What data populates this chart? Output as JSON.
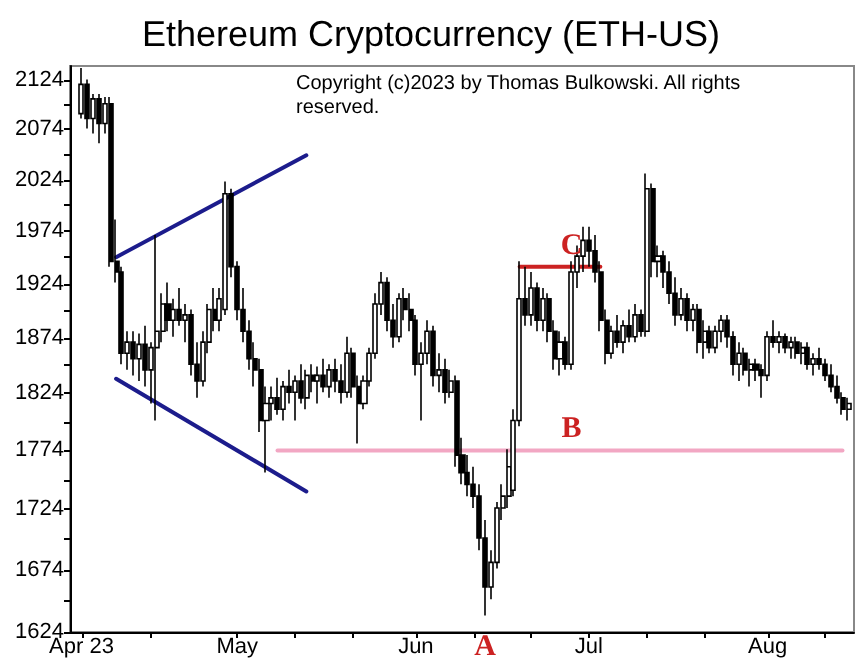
{
  "chart_data": {
    "type": "candlestick",
    "title": "Ethereum Cryptocurrency (ETH-US)",
    "color": "#000000",
    "log": true,
    "marker": "none",
    "annotations": [
      "Copyright (c)2023 by Thomas Bulkowski. All rights reserved.",
      {
        "text": "A",
        "x": "2023-06-13",
        "y": 1637
      },
      {
        "text": "B",
        "x": "2023-06-28",
        "y": 1774
      },
      {
        "text": "C",
        "x": "2023-06-28",
        "y": 1940
      }
    ],
    "x": [
      "2023-04-04",
      "2023-04-05",
      "2023-04-06",
      "2023-04-07",
      "2023-04-08",
      "2023-04-09",
      "2023-04-10",
      "2023-04-11",
      "2023-04-12",
      "2023-04-13",
      "2023-04-14",
      "2023-04-15",
      "2023-04-16",
      "2023-04-17",
      "2023-04-18",
      "2023-04-19",
      "2023-04-20",
      "2023-04-21",
      "2023-04-22",
      "2023-04-23",
      "2023-04-24",
      "2023-04-25",
      "2023-04-26",
      "2023-04-27",
      "2023-04-28",
      "2023-04-29",
      "2023-04-30",
      "2023-05-01",
      "2023-05-02",
      "2023-05-03",
      "2023-05-04",
      "2023-05-05",
      "2023-05-06",
      "2023-05-07",
      "2023-05-08",
      "2023-05-09",
      "2023-05-10",
      "2023-05-11",
      "2023-05-12",
      "2023-05-13",
      "2023-05-14",
      "2023-05-15",
      "2023-05-16",
      "2023-05-17",
      "2023-05-18",
      "2023-05-19",
      "2023-05-20",
      "2023-05-21",
      "2023-05-22",
      "2023-05-23",
      "2023-05-24",
      "2023-05-25",
      "2023-05-26",
      "2023-05-27",
      "2023-05-28",
      "2023-05-29",
      "2023-05-30",
      "2023-05-31",
      "2023-06-01",
      "2023-06-02",
      "2023-06-03",
      "2023-06-04",
      "2023-06-05",
      "2023-06-06",
      "2023-06-07",
      "2023-06-08",
      "2023-06-09",
      "2023-06-10",
      "2023-06-11",
      "2023-06-12",
      "2023-06-13",
      "2023-06-14",
      "2023-06-15",
      "2023-06-16",
      "2023-06-17",
      "2023-06-18",
      "2023-06-19",
      "2023-06-20",
      "2023-06-21",
      "2023-06-22",
      "2023-06-23",
      "2023-06-24",
      "2023-06-25",
      "2023-06-26",
      "2023-06-27",
      "2023-06-28",
      "2023-06-29",
      "2023-06-30",
      "2023-07-01",
      "2023-07-02",
      "2023-07-03",
      "2023-07-04",
      "2023-07-05",
      "2023-07-06",
      "2023-07-07",
      "2023-07-08",
      "2023-07-09",
      "2023-07-10",
      "2023-07-11",
      "2023-07-12",
      "2023-07-13",
      "2023-07-14",
      "2023-07-15",
      "2023-07-16",
      "2023-07-17",
      "2023-07-18",
      "2023-07-19",
      "2023-07-20",
      "2023-07-21",
      "2023-07-22",
      "2023-07-23",
      "2023-07-24",
      "2023-07-25",
      "2023-07-26",
      "2023-07-27",
      "2023-07-28",
      "2023-07-29",
      "2023-07-30",
      "2023-07-31",
      "2023-08-01",
      "2023-08-02",
      "2023-08-03",
      "2023-08-04",
      "2023-08-05",
      "2023-08-06",
      "2023-08-07",
      "2023-08-08",
      "2023-08-09",
      "2023-08-10",
      "2023-08-11",
      "2023-08-12",
      "2023-08-13",
      "2023-08-14",
      "2023-08-15"
    ],
    "ohlc": [
      [
        2090,
        2137,
        2085,
        2120
      ],
      [
        2120,
        2125,
        2075,
        2085
      ],
      [
        2085,
        2110,
        2070,
        2105
      ],
      [
        2105,
        2110,
        2060,
        2080
      ],
      [
        2080,
        2107,
        2070,
        2100
      ],
      [
        2100,
        2107,
        1940,
        1945
      ],
      [
        1945,
        1985,
        1925,
        1935
      ],
      [
        1935,
        1940,
        1850,
        1860
      ],
      [
        1860,
        1880,
        1845,
        1870
      ],
      [
        1870,
        1880,
        1840,
        1855
      ],
      [
        1855,
        1878,
        1835,
        1868
      ],
      [
        1868,
        1885,
        1830,
        1845
      ],
      [
        1845,
        1870,
        1815,
        1865
      ],
      [
        1865,
        1970,
        1800,
        1880
      ],
      [
        1880,
        1915,
        1870,
        1905
      ],
      [
        1905,
        1925,
        1880,
        1890
      ],
      [
        1890,
        1910,
        1875,
        1900
      ],
      [
        1900,
        1920,
        1885,
        1890
      ],
      [
        1890,
        1905,
        1870,
        1895
      ],
      [
        1895,
        1900,
        1840,
        1850
      ],
      [
        1850,
        1870,
        1820,
        1835
      ],
      [
        1835,
        1880,
        1830,
        1870
      ],
      [
        1870,
        1905,
        1860,
        1900
      ],
      [
        1900,
        1920,
        1880,
        1890
      ],
      [
        1890,
        1920,
        1880,
        1910
      ],
      [
        1900,
        2022,
        1895,
        2010
      ],
      [
        2010,
        2015,
        1930,
        1940
      ],
      [
        1940,
        1945,
        1890,
        1900
      ],
      [
        1900,
        1920,
        1870,
        1880
      ],
      [
        1880,
        1890,
        1845,
        1855
      ],
      [
        1855,
        1870,
        1830,
        1845
      ],
      [
        1845,
        1855,
        1790,
        1800
      ],
      [
        1800,
        1830,
        1755,
        1815
      ],
      [
        1815,
        1830,
        1800,
        1820
      ],
      [
        1820,
        1838,
        1805,
        1810
      ],
      [
        1810,
        1835,
        1800,
        1830
      ],
      [
        1830,
        1845,
        1815,
        1825
      ],
      [
        1825,
        1840,
        1800,
        1835
      ],
      [
        1835,
        1850,
        1815,
        1820
      ],
      [
        1820,
        1845,
        1810,
        1840
      ],
      [
        1840,
        1850,
        1825,
        1835
      ],
      [
        1835,
        1848,
        1815,
        1840
      ],
      [
        1840,
        1855,
        1825,
        1830
      ],
      [
        1830,
        1850,
        1820,
        1845
      ],
      [
        1845,
        1855,
        1825,
        1835
      ],
      [
        1835,
        1850,
        1815,
        1825
      ],
      [
        1825,
        1875,
        1820,
        1860
      ],
      [
        1860,
        1865,
        1820,
        1830
      ],
      [
        1830,
        1840,
        1780,
        1815
      ],
      [
        1815,
        1840,
        1810,
        1835
      ],
      [
        1835,
        1865,
        1830,
        1860
      ],
      [
        1860,
        1915,
        1855,
        1905
      ],
      [
        1905,
        1935,
        1895,
        1925
      ],
      [
        1925,
        1930,
        1880,
        1890
      ],
      [
        1890,
        1905,
        1865,
        1875
      ],
      [
        1875,
        1915,
        1870,
        1910
      ],
      [
        1910,
        1920,
        1890,
        1900
      ],
      [
        1900,
        1915,
        1880,
        1890
      ],
      [
        1890,
        1895,
        1840,
        1850
      ],
      [
        1850,
        1870,
        1800,
        1860
      ],
      [
        1860,
        1890,
        1850,
        1880
      ],
      [
        1880,
        1885,
        1830,
        1840
      ],
      [
        1840,
        1860,
        1825,
        1845
      ],
      [
        1845,
        1855,
        1815,
        1825
      ],
      [
        1825,
        1845,
        1820,
        1835
      ],
      [
        1835,
        1840,
        1760,
        1770
      ],
      [
        1770,
        1785,
        1745,
        1755
      ],
      [
        1755,
        1770,
        1735,
        1745
      ],
      [
        1745,
        1760,
        1725,
        1735
      ],
      [
        1735,
        1745,
        1690,
        1700
      ],
      [
        1700,
        1715,
        1637,
        1660
      ],
      [
        1660,
        1690,
        1650,
        1680
      ],
      [
        1680,
        1730,
        1675,
        1725
      ],
      [
        1725,
        1745,
        1715,
        1735
      ],
      [
        1735,
        1775,
        1725,
        1760
      ],
      [
        1740,
        1810,
        1735,
        1800
      ],
      [
        1800,
        1945,
        1795,
        1910
      ],
      [
        1910,
        1940,
        1885,
        1895
      ],
      [
        1895,
        1935,
        1885,
        1920
      ],
      [
        1920,
        1925,
        1880,
        1890
      ],
      [
        1890,
        1920,
        1880,
        1910
      ],
      [
        1910,
        1915,
        1870,
        1880
      ],
      [
        1880,
        1890,
        1845,
        1855
      ],
      [
        1855,
        1880,
        1840,
        1870
      ],
      [
        1870,
        1875,
        1845,
        1850
      ],
      [
        1850,
        1945,
        1845,
        1935
      ],
      [
        1935,
        1960,
        1920,
        1950
      ],
      [
        1950,
        1978,
        1935,
        1965
      ],
      [
        1965,
        1978,
        1940,
        1955
      ],
      [
        1955,
        1970,
        1925,
        1935
      ],
      [
        1935,
        1945,
        1880,
        1890
      ],
      [
        1890,
        1900,
        1850,
        1860
      ],
      [
        1860,
        1885,
        1855,
        1880
      ],
      [
        1880,
        1895,
        1865,
        1870
      ],
      [
        1870,
        1890,
        1860,
        1885
      ],
      [
        1885,
        1900,
        1870,
        1875
      ],
      [
        1875,
        1905,
        1870,
        1895
      ],
      [
        1895,
        1900,
        1875,
        1880
      ],
      [
        1880,
        2030,
        1875,
        2015
      ],
      [
        2015,
        2020,
        1930,
        1945
      ],
      [
        1945,
        1960,
        1930,
        1950
      ],
      [
        1950,
        1955,
        1920,
        1935
      ],
      [
        1935,
        1945,
        1905,
        1915
      ],
      [
        1915,
        1930,
        1885,
        1895
      ],
      [
        1895,
        1920,
        1890,
        1910
      ],
      [
        1910,
        1915,
        1880,
        1890
      ],
      [
        1890,
        1905,
        1880,
        1900
      ],
      [
        1900,
        1905,
        1860,
        1870
      ],
      [
        1870,
        1890,
        1855,
        1880
      ],
      [
        1880,
        1885,
        1860,
        1865
      ],
      [
        1865,
        1885,
        1860,
        1880
      ],
      [
        1880,
        1895,
        1870,
        1890
      ],
      [
        1890,
        1895,
        1865,
        1875
      ],
      [
        1875,
        1880,
        1840,
        1850
      ],
      [
        1850,
        1870,
        1835,
        1860
      ],
      [
        1860,
        1865,
        1840,
        1845
      ],
      [
        1845,
        1855,
        1830,
        1850
      ],
      [
        1850,
        1855,
        1835,
        1845
      ],
      [
        1845,
        1850,
        1820,
        1840
      ],
      [
        1840,
        1880,
        1835,
        1875
      ],
      [
        1875,
        1890,
        1865,
        1870
      ],
      [
        1870,
        1880,
        1860,
        1875
      ],
      [
        1875,
        1878,
        1860,
        1865
      ],
      [
        1865,
        1875,
        1855,
        1870
      ],
      [
        1870,
        1875,
        1855,
        1860
      ],
      [
        1860,
        1870,
        1850,
        1865
      ],
      [
        1865,
        1870,
        1845,
        1850
      ],
      [
        1850,
        1860,
        1840,
        1855
      ],
      [
        1855,
        1865,
        1845,
        1850
      ],
      [
        1850,
        1855,
        1835,
        1840
      ],
      [
        1840,
        1850,
        1825,
        1830
      ],
      [
        1830,
        1840,
        1815,
        1820
      ],
      [
        1820,
        1825,
        1805,
        1810
      ],
      [
        1810,
        1820,
        1800,
        1815
      ]
    ],
    "series": [
      {
        "type": "line",
        "color": "#1c1c8c",
        "x": [
          "2023-04-10",
          "2023-05-13"
        ],
        "values": [
          1949,
          2048
        ]
      },
      {
        "type": "line",
        "color": "#1c1c8c",
        "x": [
          "2023-04-10",
          "2023-05-13"
        ],
        "values": [
          1837,
          1739
        ]
      },
      {
        "type": "line",
        "color": "#f2a7c3",
        "x": [
          "2023-05-08",
          "2023-08-14"
        ],
        "values": [
          1774,
          1774
        ]
      },
      {
        "type": "line",
        "color": "#cc2222",
        "x": [
          "2023-06-19",
          "2023-07-03"
        ],
        "values": [
          1940,
          1940
        ]
      }
    ],
    "xlim": [
      "2023-04-02",
      "2023-08-16"
    ],
    "xticks": [
      {
        "value": "2023-04-04",
        "label": "Apr 23"
      },
      {
        "value": "2023-04-16",
        "label": null
      },
      {
        "value": "2023-05-01",
        "label": "May"
      },
      {
        "value": "2023-05-11",
        "label": null
      },
      {
        "value": "2023-05-21",
        "label": null
      },
      {
        "value": "2023-06-01",
        "label": "Jun"
      },
      {
        "value": "2023-06-11",
        "label": null
      },
      {
        "value": "2023-06-21",
        "label": null
      },
      {
        "value": "2023-07-01",
        "label": "Jul"
      },
      {
        "value": "2023-07-11",
        "label": null
      },
      {
        "value": "2023-07-21",
        "label": null
      },
      {
        "value": "2023-08-01",
        "label": "Aug"
      },
      {
        "value": "2023-08-11",
        "label": null
      }
    ],
    "ylim": [
      1624,
      2139
    ],
    "yticks": [
      1624,
      {
        "value": 1649,
        "label": null
      },
      1674,
      {
        "value": 1699,
        "label": null
      },
      1724,
      {
        "value": 1749,
        "label": null
      },
      1774,
      {
        "value": 1799,
        "label": null
      },
      1824,
      {
        "value": 1849,
        "label": null
      },
      1874,
      {
        "value": 1899,
        "label": null
      },
      1924,
      {
        "value": 1949,
        "label": null
      },
      1974,
      {
        "value": 1999,
        "label": null
      },
      2024,
      {
        "value": 2049,
        "label": null
      },
      2074,
      {
        "value": 2099,
        "label": null
      },
      2124
    ]
  }
}
